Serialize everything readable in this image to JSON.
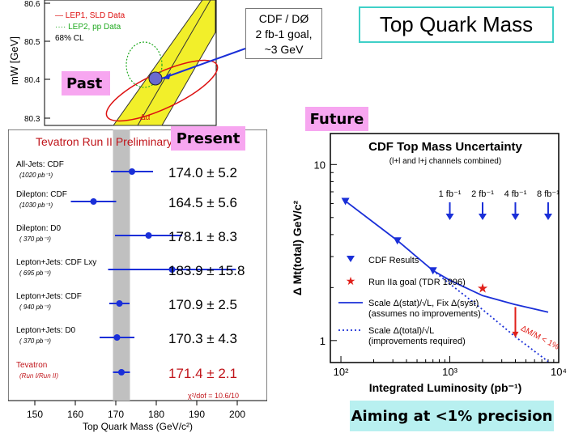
{
  "slide": {
    "title": "Top Quark Mass",
    "note_lines": [
      "CDF / DØ",
      "2 fb-1 goal,",
      "~3 GeV"
    ],
    "tags": {
      "past": "Past",
      "present": "Present",
      "future": "Future",
      "aiming": "Aiming at <1% precision"
    }
  },
  "chart_data": [
    {
      "type": "scatter",
      "panel": "past",
      "ylabel": "mW [GeV]",
      "y_ticks": [
        "80.6",
        "80.5",
        "80.4",
        "80.3"
      ],
      "legend": [
        "— LEP1, SLD Data",
        "···· LEP2, pp Data",
        "68% CL"
      ],
      "annotations": [
        "Δα"
      ]
    },
    {
      "type": "scatter",
      "panel": "present",
      "title": "Tevatron Run II Preliminary",
      "xlabel": "Top Quark Mass (GeV/c²)",
      "xlim": [
        150,
        200
      ],
      "x_ticks": [
        150,
        160,
        170,
        180,
        190,
        200
      ],
      "band": [
        169.3,
        173.5
      ],
      "chi2_label": "χ²/dof = 10.6/10",
      "measurements": [
        {
          "label": "All-Jets: CDF",
          "lumi": "(1020 pb⁻¹)",
          "value": 174.0,
          "err": 5.2,
          "display": "174.0 ± 5.2",
          "combined": false
        },
        {
          "label": "Dilepton: CDF",
          "lumi": "(1030 pb⁻¹)",
          "value": 164.5,
          "err": 5.6,
          "display": "164.5 ± 5.6",
          "combined": false
        },
        {
          "label": "Dilepton: D0",
          "lumi": "( 370 pb⁻¹)",
          "value": 178.1,
          "err": 8.3,
          "display": "178.1 ± 8.3",
          "combined": false
        },
        {
          "label": "Lepton+Jets: CDF Lxy",
          "lumi": "( 695 pb⁻¹)",
          "value": 183.9,
          "err": 15.8,
          "display": "183.9 ± 15.8",
          "combined": false
        },
        {
          "label": "Lepton+Jets: CDF",
          "lumi": "( 940 pb⁻¹)",
          "value": 170.9,
          "err": 2.5,
          "display": "170.9 ± 2.5",
          "combined": false
        },
        {
          "label": "Lepton+Jets: D0",
          "lumi": "( 370 pb⁻¹)",
          "value": 170.3,
          "err": 4.3,
          "display": "170.3 ± 4.3",
          "combined": false
        },
        {
          "label": "Tevatron",
          "lumi": "(Run I/Run II)",
          "value": 171.4,
          "err": 2.1,
          "display": "171.4 ± 2.1",
          "combined": true
        }
      ]
    },
    {
      "type": "line",
      "panel": "future",
      "title": "CDF Top Mass Uncertainty",
      "subtitle": "(l+l and l+j channels combined)",
      "xlabel": "Integrated Luminosity (pb⁻¹)",
      "ylabel": "Δ Mt(total) GeV/c²",
      "xscale": "log",
      "yscale": "log",
      "xlim": [
        80,
        10000
      ],
      "ylim": [
        0.75,
        15
      ],
      "x_ticks": [
        {
          "value": 100,
          "label": "10²"
        },
        {
          "value": 1000,
          "label": "10³"
        },
        {
          "value": 10000,
          "label": "10⁴"
        }
      ],
      "y_ticks": [
        {
          "value": 10,
          "label": "10"
        },
        {
          "value": 1,
          "label": "1"
        }
      ],
      "lumi_markers": [
        {
          "x": 1000,
          "label": "1 fb⁻¹"
        },
        {
          "x": 2000,
          "label": "2 fb⁻¹"
        },
        {
          "x": 4000,
          "label": "4 fb⁻¹"
        },
        {
          "x": 8000,
          "label": "8 fb⁻¹"
        }
      ],
      "series": [
        {
          "name": "CDF Results",
          "kind": "points",
          "x": [
            110,
            330,
            700
          ],
          "y": [
            6.2,
            3.7,
            2.5
          ]
        },
        {
          "name": "Run IIa goal (TDR 1996)",
          "kind": "star",
          "x": [
            2000
          ],
          "y": [
            2.0
          ]
        },
        {
          "name": "Scale Δ(stat)/√L, Fix Δ(syst)",
          "sub": "(assumes no improvements)",
          "kind": "solid",
          "x": [
            110,
            330,
            700,
            1000,
            2000,
            4000,
            8000
          ],
          "y": [
            6.2,
            3.7,
            2.5,
            2.2,
            1.8,
            1.6,
            1.45
          ]
        },
        {
          "name": "Scale Δ(total)/√L",
          "sub": "(improvements required)",
          "kind": "dotted",
          "x": [
            700,
            1000,
            2000,
            4000,
            8000
          ],
          "y": [
            2.5,
            2.1,
            1.5,
            1.05,
            0.76
          ]
        }
      ],
      "annotations": [
        "ΔM/M < 1%"
      ]
    }
  ]
}
